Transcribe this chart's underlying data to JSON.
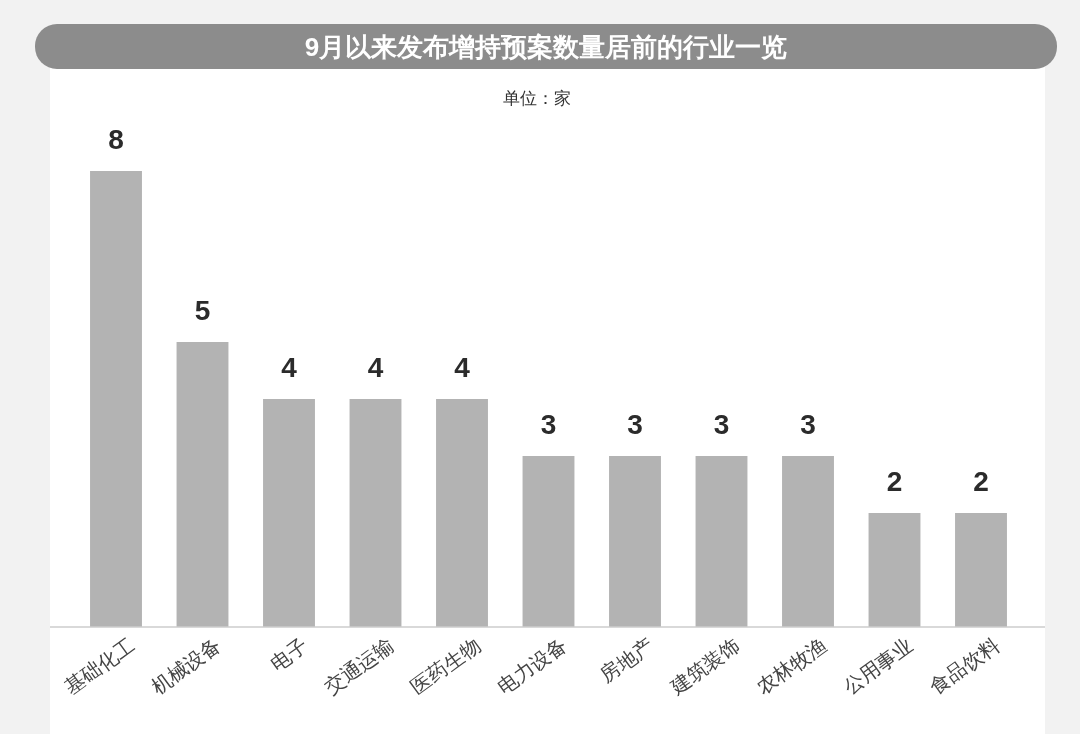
{
  "chart_data": {
    "type": "bar",
    "title": "9月以来发布增持预案数量居前的行业一览",
    "subtitle": "单位：家",
    "categories": [
      "基础化工",
      "机械设备",
      "电子",
      "交通运输",
      "医药生物",
      "电力设备",
      "房地产",
      "建筑装饰",
      "农林牧渔",
      "公用事业",
      "食品饮料"
    ],
    "values": [
      8,
      5,
      4,
      4,
      4,
      3,
      3,
      3,
      3,
      2,
      2
    ],
    "color": "#b3b3b3",
    "data_labels": true
  }
}
